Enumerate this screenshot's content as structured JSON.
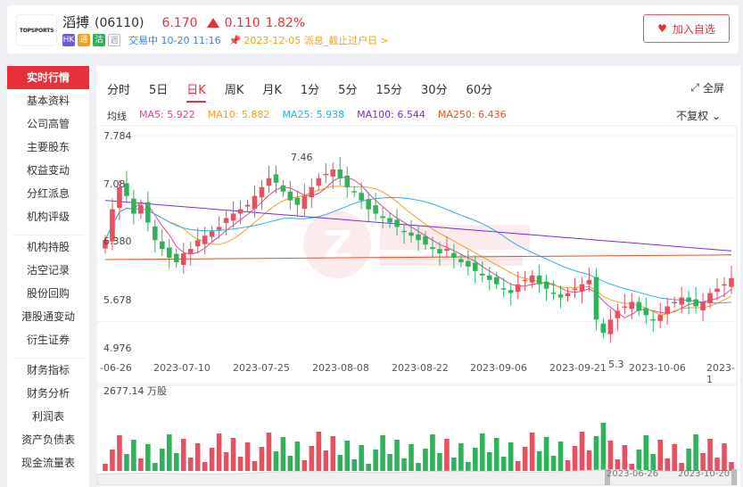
{
  "header": {
    "logo_text": "TOPSPORTS",
    "stock_name": "滔搏",
    "stock_code": "(06110)",
    "price": "6.170",
    "change": "0.110",
    "change_pct": "1.82%",
    "badges": [
      "HK",
      "通",
      "沽",
      "週"
    ],
    "status": "交易中 10-20 11:16",
    "notice": "2023-12-05 派息_截止过户日",
    "notice_arrow": ">",
    "fav_label": "加入自选"
  },
  "sidebar": {
    "items": [
      "实时行情",
      "基本资料",
      "公司高管",
      "主要股东",
      "权益变动",
      "分红派息",
      "机构评级",
      "机构持股",
      "沽空记录",
      "股份回购",
      "港股通变动",
      "衍生证券",
      "财务指标",
      "财务分析",
      "利润表",
      "资产负债表",
      "现金流量表"
    ]
  },
  "tabs": [
    "分时",
    "5日",
    "日K",
    "周K",
    "月K",
    "1分",
    "5分",
    "15分",
    "30分",
    "60分"
  ],
  "fullscreen_label": "全屏",
  "adjust_label": "不复权",
  "ma": {
    "label": "均线",
    "items": [
      {
        "name": "MA5: 5.922",
        "color": "#e0409a"
      },
      {
        "name": "MA10: 5.882",
        "color": "#f0a020"
      },
      {
        "name": "MA25: 5.938",
        "color": "#2ab0e6"
      },
      {
        "name": "MA100: 6.544",
        "color": "#7a2ad8"
      },
      {
        "name": "MA250: 6.436",
        "color": "#e85020"
      }
    ]
  },
  "chart_data": {
    "type": "candlestick",
    "y_ticks": [
      "7.784",
      "7.08",
      "6.380",
      "5.678",
      "4.976"
    ],
    "y_range": [
      4.976,
      7.784
    ],
    "x_ticks": [
      "-06-26",
      "2023-07-10",
      "2023-07-25",
      "2023-08-08",
      "2023-08-22",
      "2023-09-06",
      "2023-09-21",
      "2023-10-06",
      "2023-1"
    ],
    "annotations": [
      "7.46",
      "5.3"
    ],
    "volume_label": "2677.14 万股",
    "range_labels": [
      "2023-06-26",
      "2023-10-20"
    ],
    "up_color": "#e8505f",
    "down_color": "#2fb35a"
  }
}
